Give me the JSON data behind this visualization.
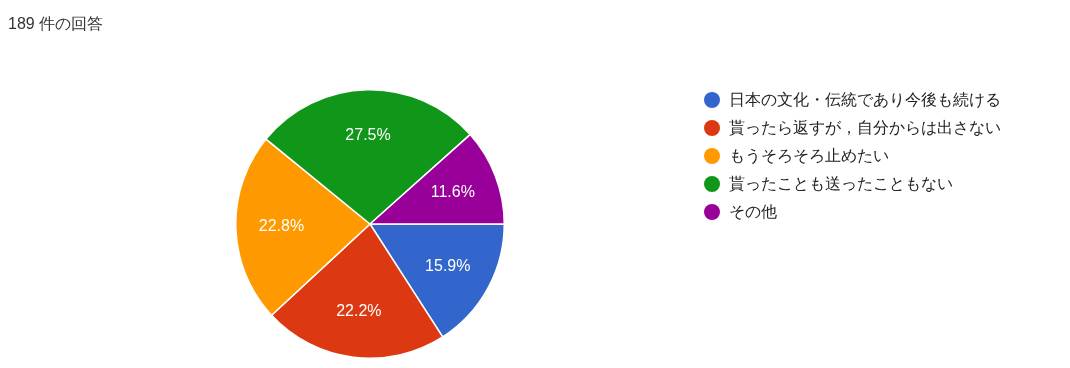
{
  "chart_data": {
    "type": "pie",
    "title": "189 件の回答",
    "categories": [
      "日本の文化・伝統であり今後も続ける",
      "貰ったら返すが，自分からは出さない",
      "もうそろそろ止めたい",
      "貰ったことも送ったこともない",
      "その他"
    ],
    "values": [
      15.9,
      22.2,
      22.8,
      27.5,
      11.6
    ],
    "value_labels": [
      "15.9%",
      "22.2%",
      "22.8%",
      "27.5%",
      "11.6%"
    ],
    "colors": [
      "#3366cc",
      "#dc3912",
      "#ff9900",
      "#109618",
      "#990099"
    ],
    "legend": "right"
  }
}
